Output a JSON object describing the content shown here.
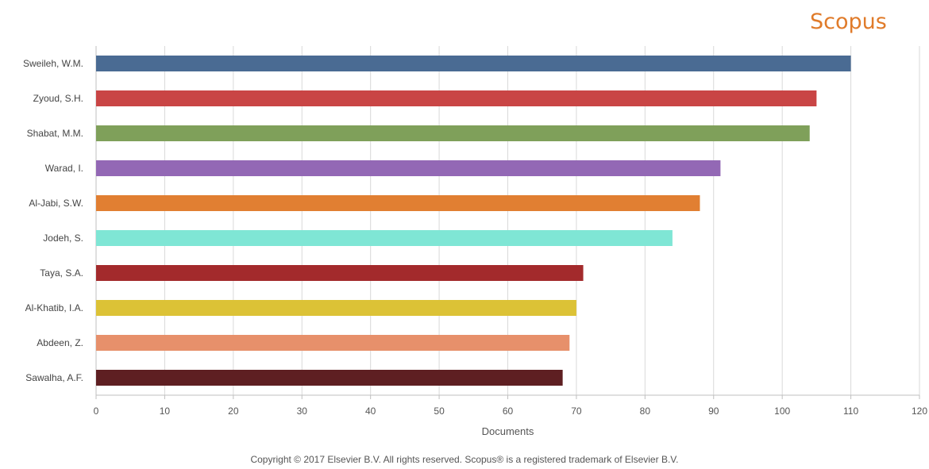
{
  "brand": "Scopus",
  "copyright": "Copyright © 2017 Elsevier B.V. All rights reserved. Scopus® is a registered trademark of Elsevier B.V.",
  "chart_data": {
    "type": "bar",
    "orientation": "horizontal",
    "categories": [
      "Sweileh, W.M.",
      "Zyoud, S.H.",
      "Shabat, M.M.",
      "Warad, I.",
      "Al-Jabi, S.W.",
      "Jodeh, S.",
      "Taya, S.A.",
      "Al-Khatib, I.A.",
      "Abdeen, Z.",
      "Sawalha, A.F."
    ],
    "values": [
      110,
      105,
      104,
      91,
      88,
      84,
      71,
      70,
      69,
      68
    ],
    "colors": [
      "#4a6b93",
      "#c94545",
      "#7fa05a",
      "#9368b5",
      "#e17f32",
      "#7fe6d5",
      "#a32a2c",
      "#dcc236",
      "#e7906b",
      "#5e1f22"
    ],
    "xlabel": "Documents",
    "ylabel": "",
    "xlim": [
      0,
      120
    ],
    "xticks": [
      0,
      10,
      20,
      30,
      40,
      50,
      60,
      70,
      80,
      90,
      100,
      110,
      120
    ],
    "grid": "vertical"
  }
}
